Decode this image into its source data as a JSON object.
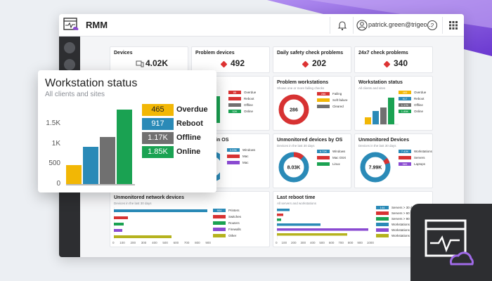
{
  "app": {
    "title": "RMM",
    "user_email": "patrick.green@trigeo..."
  },
  "colors": {
    "overdue": "#f2b705",
    "reboot": "#2a8ab7",
    "offline": "#707070",
    "online": "#1aa252",
    "red": "#d73232",
    "purple": "#8a4ad1"
  },
  "stats": [
    {
      "title": "Devices",
      "value": "4.02K",
      "icon": "devices-icon"
    },
    {
      "title": "Problem devices",
      "value": "492",
      "icon": "warning-diamond-icon"
    },
    {
      "title": "Daily safety check problems",
      "value": "202",
      "icon": "warning-diamond-icon"
    },
    {
      "title": "24x7 check problems",
      "value": "340",
      "icon": "warning-diamond-icon"
    }
  ],
  "status_card": {
    "title": "Workstation status",
    "subtitle": "All clients and sites",
    "legend": [
      {
        "value": "465",
        "label": "Overdue"
      },
      {
        "value": "917",
        "label": "Reboot"
      },
      {
        "value": "1.17K",
        "label": "Offline"
      },
      {
        "value": "1.85K",
        "label": "Online"
      }
    ]
  },
  "status_partial": {
    "title": "tus",
    "legend": [
      {
        "v": "85",
        "l": "Overdue"
      },
      {
        "v": "",
        "l": "Reboot"
      },
      {
        "v": "",
        "l": "Offline"
      },
      {
        "v": "52K",
        "l": "Online"
      }
    ]
  },
  "problem_ws": {
    "title": "Problem workstations",
    "subtitle": "Shows one or more failing checks",
    "center": "286",
    "legend": [
      {
        "v": "286",
        "l": "Failing"
      },
      {
        "v": "",
        "l": "Soft failure"
      },
      {
        "v": "",
        "l": "Cleared"
      }
    ]
  },
  "main_os": {
    "title": "main OS",
    "legend": [
      {
        "v": "3.93K",
        "l": "Windows"
      },
      {
        "v": "",
        "l": "Mac"
      },
      {
        "v": "",
        "l": "Mac"
      }
    ]
  },
  "unmon_os": {
    "title": "Unmonitored devices by OS",
    "subtitle": "Devices in the last 30 days",
    "center": "8.03K",
    "legend": [
      {
        "v": "6.72K",
        "l": "Windows"
      },
      {
        "v": "",
        "l": "Mac OSX"
      },
      {
        "v": "",
        "l": "Linux"
      }
    ]
  },
  "unmon_dev": {
    "title": "Unmonitored Devices",
    "subtitle": "Devices in the last 30 days",
    "center": "7.99K",
    "legend": [
      {
        "v": "7.42K",
        "l": "Workstations"
      },
      {
        "v": "",
        "l": "Servers"
      },
      {
        "v": "569",
        "l": "Laptops"
      }
    ]
  },
  "network": {
    "title": "Unmonitored network devices",
    "subtitle": "Devices in the last 30 days",
    "legend": [
      {
        "v": "904",
        "l": "Printers"
      },
      {
        "v": "",
        "l": "Switches"
      },
      {
        "v": "",
        "l": "Routers"
      },
      {
        "v": "",
        "l": "Firewalls"
      },
      {
        "v": "",
        "l": "Other"
      }
    ],
    "ticks": [
      "0",
      "100",
      "200",
      "300",
      "400",
      "500",
      "600",
      "700",
      "800",
      "900"
    ]
  },
  "reboot": {
    "title": "Last reboot time",
    "subtitle": "All servers and workstations",
    "legend": [
      {
        "v": "144",
        "l": "Servers > 30 days"
      },
      {
        "v": "",
        "l": "Servers > 60 days"
      },
      {
        "v": "",
        "l": "Servers > 90 days"
      },
      {
        "v": "",
        "l": "Workstations > 30 days"
      },
      {
        "v": "",
        "l": "Workstations > 60 days"
      },
      {
        "v": "",
        "l": "Workstations > 90 days"
      }
    ],
    "ticks": [
      "0",
      "100",
      "200",
      "300",
      "400",
      "500",
      "600",
      "700",
      "800",
      "900",
      "1000"
    ]
  },
  "chart_data": {
    "type": "bar",
    "title": "Workstation status",
    "subtitle": "All clients and sites",
    "categories": [
      "Overdue",
      "Reboot",
      "Offline",
      "Online"
    ],
    "values": [
      465,
      917,
      1170,
      1850
    ],
    "yticks": [
      "0",
      "500",
      "1K",
      "1.5K"
    ],
    "ylim": [
      0,
      2000
    ]
  }
}
